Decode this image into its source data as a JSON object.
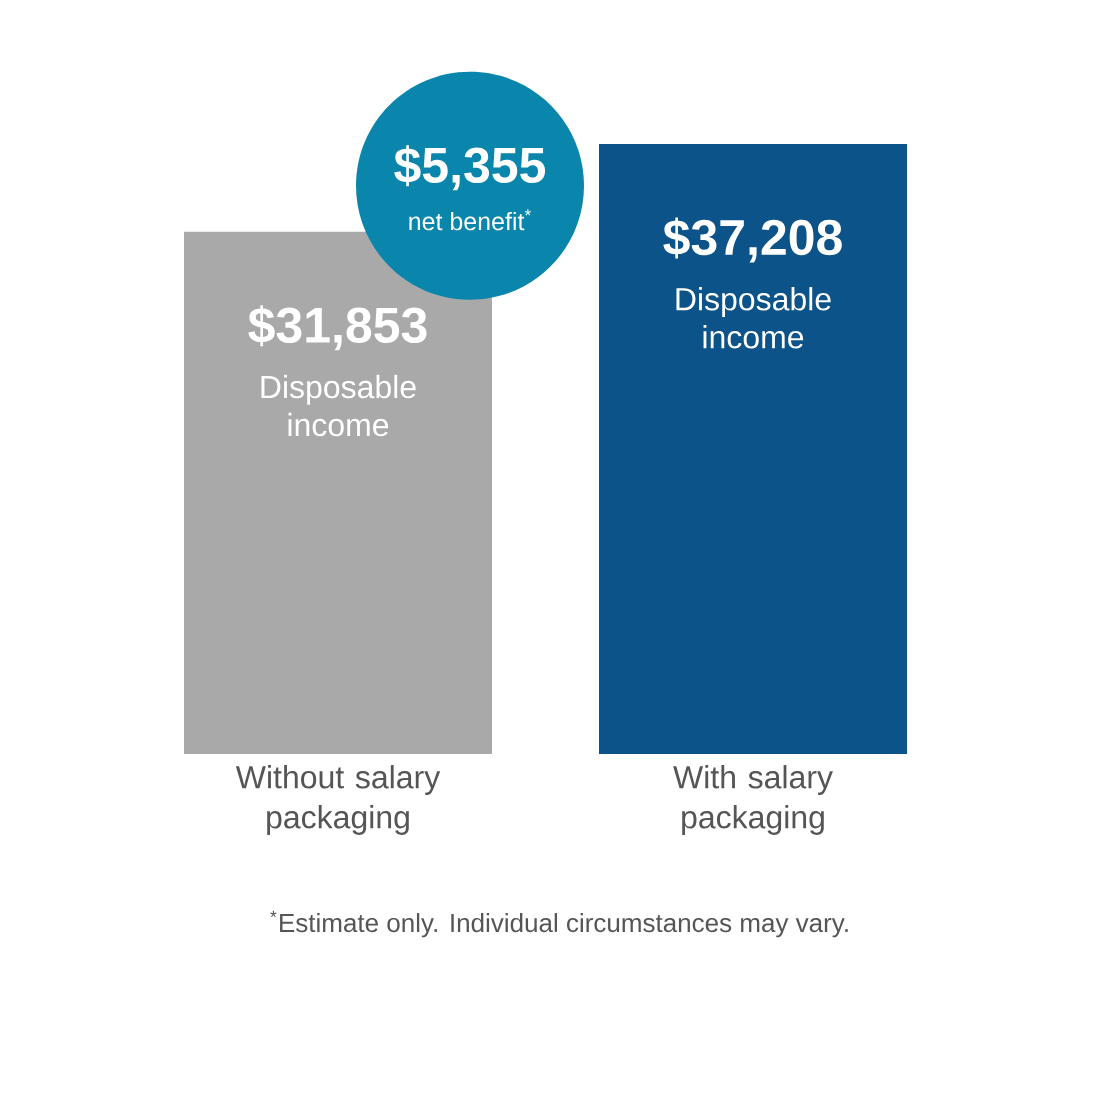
{
  "chart_data": {
    "type": "bar",
    "categories": [
      "Without salary packaging",
      "With salary packaging"
    ],
    "values": [
      31853,
      37208
    ],
    "colors": [
      "#a9a9a9",
      "#0b5388"
    ],
    "value_labels": [
      "$31,853",
      "$37,208"
    ],
    "tick_labels": "x",
    "annotations": [
      "Disposable income",
      "Disposable income",
      "$5,355",
      "net benefit$^{*}$",
      "$^{*}$Estimate only. Individual circumstances may vary."
    ]
  }
}
